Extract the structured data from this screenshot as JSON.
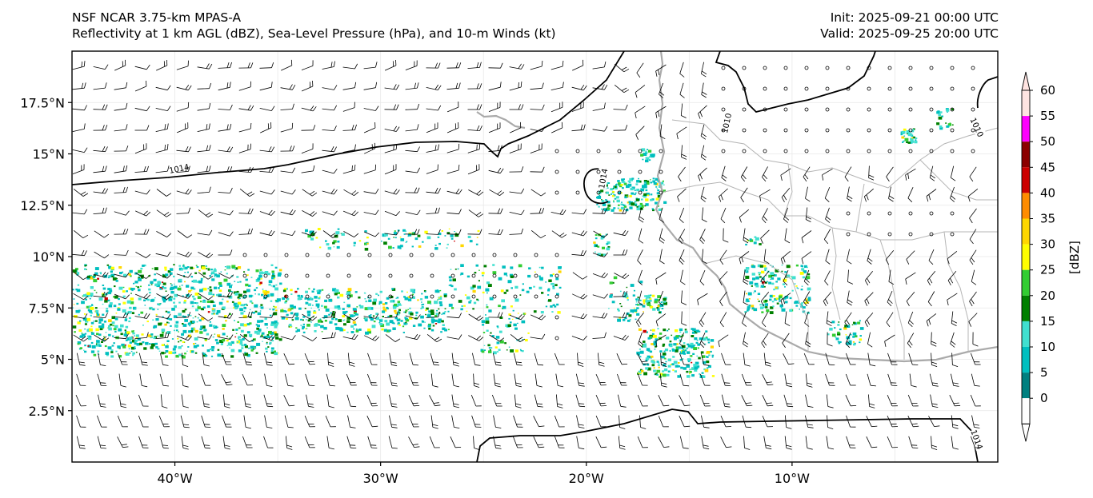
{
  "header": {
    "left_line1": "NSF NCAR 3.75-km MPAS-A",
    "left_line2": "Reflectivity at 1 km AGL (dBZ), Sea-Level Pressure (hPa), and 10-m Winds (kt)",
    "right_line1": "Init: 2025-09-21 00:00 UTC",
    "right_line2": "Valid: 2025-09-25 20:00 UTC"
  },
  "map": {
    "lon_range": [
      -45,
      0
    ],
    "lat_range": [
      0,
      20
    ],
    "lat_ticks": [
      {
        "value": 2.5,
        "label": "2.5°N"
      },
      {
        "value": 5,
        "label": "5°N"
      },
      {
        "value": 7.5,
        "label": "7.5°N"
      },
      {
        "value": 10,
        "label": "10°N"
      },
      {
        "value": 12.5,
        "label": "12.5°N"
      },
      {
        "value": 15,
        "label": "15°N"
      },
      {
        "value": 17.5,
        "label": "17.5°N"
      }
    ],
    "lon_ticks": [
      {
        "value": -40,
        "label": "40°W"
      },
      {
        "value": -30,
        "label": "30°W"
      },
      {
        "value": -20,
        "label": "20°W"
      },
      {
        "value": -10,
        "label": "10°W"
      }
    ],
    "contour_labels": [
      {
        "text": "1014",
        "lon": -39.8,
        "lat": 14.3,
        "rot": -12
      },
      {
        "text": "1014",
        "lon": -19.2,
        "lat": 13.8,
        "rot": -80
      },
      {
        "text": "1010",
        "lon": -13.2,
        "lat": 16.5,
        "rot": -78
      },
      {
        "text": "1010",
        "lon": -1.0,
        "lat": 16.3,
        "rot": 65
      },
      {
        "text": "1014",
        "lon": -1.0,
        "lat": 1.1,
        "rot": 70
      }
    ],
    "colors": {
      "contour": "#000000",
      "coast": "#aaaaaa",
      "border": "#b4b4b4",
      "barb": "#000000"
    }
  },
  "colorbar": {
    "label": "[dBZ]",
    "ticks": [
      "0",
      "5",
      "10",
      "15",
      "20",
      "25",
      "30",
      "35",
      "40",
      "45",
      "50",
      "55",
      "60"
    ],
    "colors": [
      "#ffffff",
      "#008080",
      "#00bfbf",
      "#40e0d0",
      "#008000",
      "#32cd32",
      "#ffff00",
      "#ffd700",
      "#ff8c00",
      "#cc0000",
      "#8b0000",
      "#ff00ff",
      "#ffe4e1"
    ]
  }
}
